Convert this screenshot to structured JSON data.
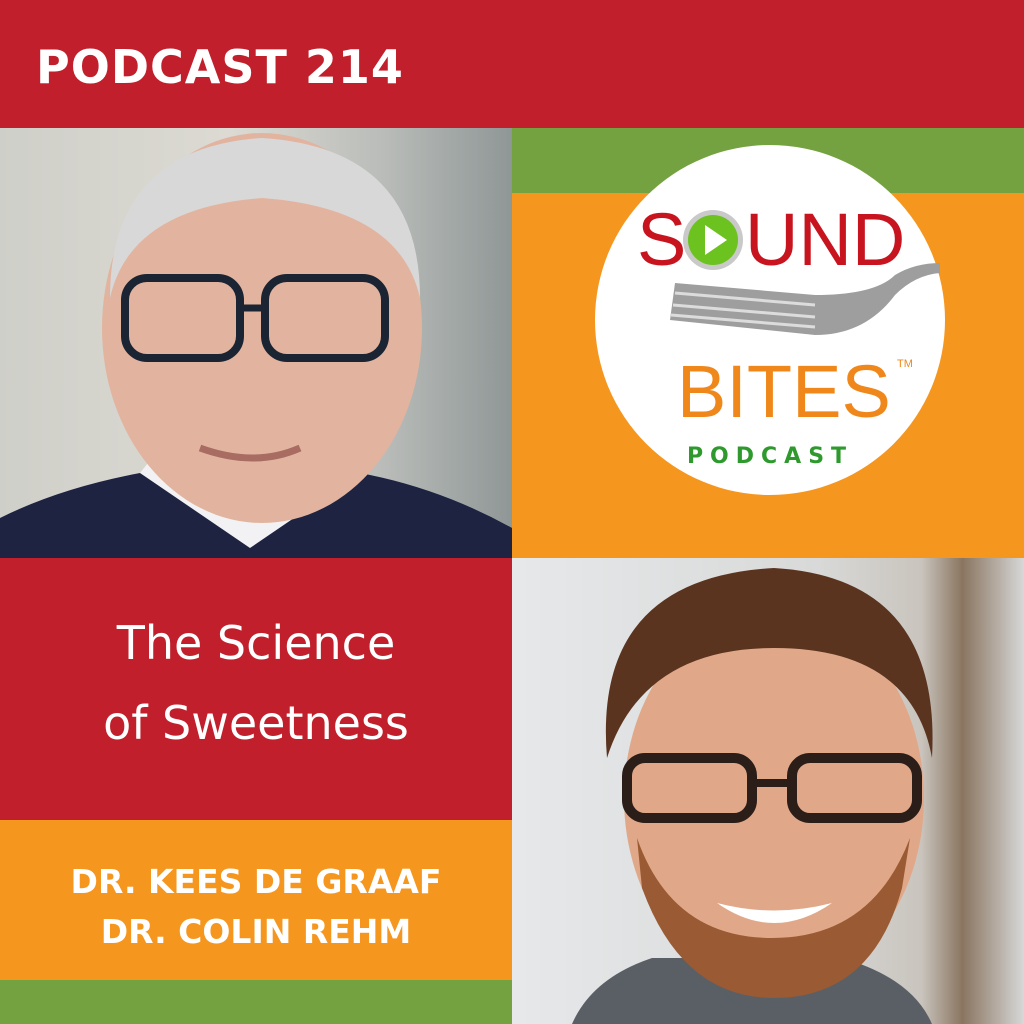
{
  "header": {
    "episode": "PODCAST 214"
  },
  "logo": {
    "word1": "SOUND",
    "word2": "BITES",
    "trademark": "TM",
    "subtitle": "PODCAST",
    "icon": "play-button-icon"
  },
  "episode": {
    "title_line1": "The Science",
    "title_line2": "of Sweetness"
  },
  "guests": [
    "DR. KEES DE GRAAF",
    "DR. COLIN REHM"
  ],
  "colors": {
    "red": "#c01f2b",
    "orange": "#f5961f",
    "green": "#75a240",
    "logo_red": "#c8141e",
    "logo_green": "#2e9a2e"
  }
}
